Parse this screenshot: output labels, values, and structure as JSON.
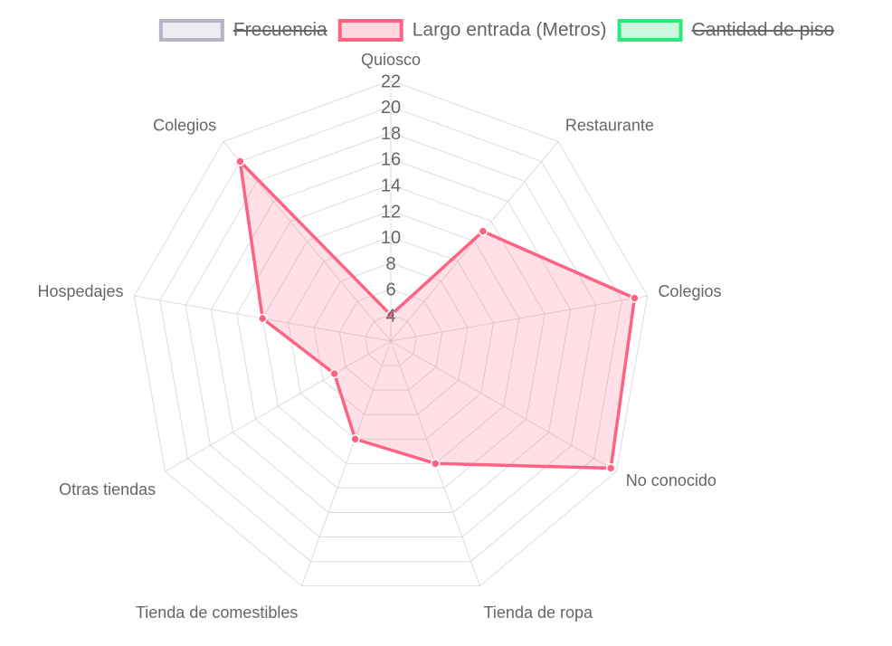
{
  "chart_data": {
    "type": "radar",
    "categories": [
      "Quiosco",
      "Restaurante",
      "Colegios",
      "No conocido",
      "Tienda de ropa",
      "Tienda de comestibles",
      "Otras tiendas",
      "Hospedajes",
      "Colegios"
    ],
    "series": [
      {
        "name": "Frecuencia",
        "color": "#b4b4c8",
        "hidden": true
      },
      {
        "name": "Largo entrada (Metros)",
        "color": "#ff6384",
        "values": [
          4,
          13,
          21,
          21.5,
          12,
          10,
          7,
          12,
          20
        ]
      },
      {
        "name": "Cantidad de piso",
        "color": "#2ee87c",
        "hidden": true
      }
    ],
    "ylim": [
      2,
      22
    ],
    "yticks": [
      4,
      6,
      8,
      10,
      12,
      14,
      16,
      18,
      20,
      22
    ],
    "grid": true,
    "legend": "top"
  }
}
